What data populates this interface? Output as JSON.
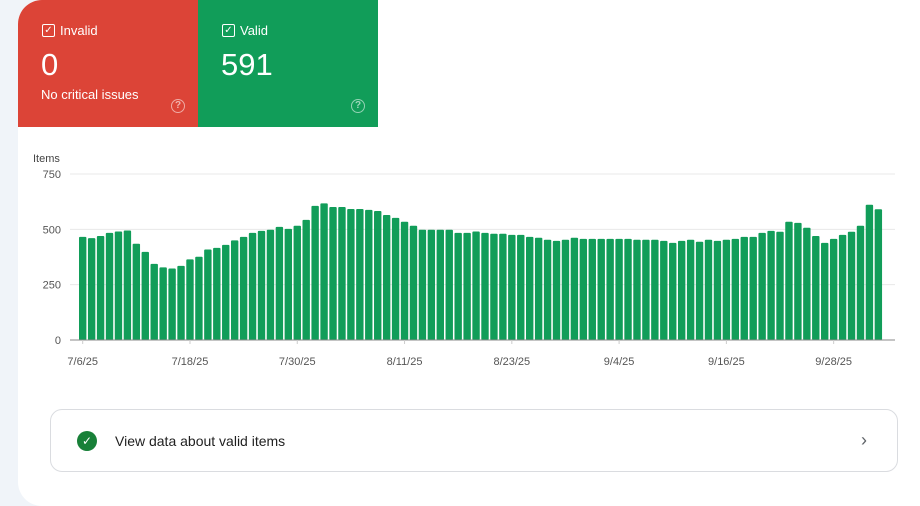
{
  "tiles": [
    {
      "label": "Invalid",
      "count": "0",
      "subtext": "No critical issues",
      "color": "#dc4437",
      "checked": true
    },
    {
      "label": "Valid",
      "count": "591",
      "subtext": "",
      "color": "#119d59",
      "checked": true
    }
  ],
  "chart_data": {
    "type": "bar",
    "ylabel": "Items",
    "ylim": [
      0,
      750
    ],
    "yticks": [
      "0",
      "250",
      "500",
      "750"
    ],
    "grid": true,
    "bar_color": "#119d59",
    "xtick_labels": [
      "7/6/25",
      "7/18/25",
      "7/30/25",
      "8/11/25",
      "8/23/25",
      "9/4/25",
      "9/16/25",
      "9/28/25"
    ],
    "x": [
      "7/6/25",
      "7/7/25",
      "7/8/25",
      "7/9/25",
      "7/10/25",
      "7/11/25",
      "7/12/25",
      "7/13/25",
      "7/14/25",
      "7/15/25",
      "7/16/25",
      "7/17/25",
      "7/18/25",
      "7/19/25",
      "7/20/25",
      "7/21/25",
      "7/22/25",
      "7/23/25",
      "7/24/25",
      "7/25/25",
      "7/26/25",
      "7/27/25",
      "7/28/25",
      "7/29/25",
      "7/30/25",
      "7/31/25",
      "8/1/25",
      "8/2/25",
      "8/3/25",
      "8/4/25",
      "8/5/25",
      "8/6/25",
      "8/7/25",
      "8/8/25",
      "8/9/25",
      "8/10/25",
      "8/11/25",
      "8/12/25",
      "8/13/25",
      "8/14/25",
      "8/15/25",
      "8/16/25",
      "8/17/25",
      "8/18/25",
      "8/19/25",
      "8/20/25",
      "8/21/25",
      "8/22/25",
      "8/23/25",
      "8/24/25",
      "8/25/25",
      "8/26/25",
      "8/27/25",
      "8/28/25",
      "8/29/25",
      "8/30/25",
      "8/31/25",
      "9/1/25",
      "9/2/25",
      "9/3/25",
      "9/4/25",
      "9/5/25",
      "9/6/25",
      "9/7/25",
      "9/8/25",
      "9/9/25",
      "9/10/25",
      "9/11/25",
      "9/12/25",
      "9/13/25",
      "9/14/25",
      "9/15/25",
      "9/16/25",
      "9/17/25",
      "9/18/25",
      "9/19/25",
      "9/20/25",
      "9/21/25",
      "9/22/25",
      "9/23/25",
      "9/24/25",
      "9/25/25",
      "9/26/25",
      "9/27/25",
      "9/28/25",
      "9/29/25",
      "9/30/25",
      "10/1/25",
      "10/2/25",
      "10/3/25"
    ],
    "values": [
      466,
      460,
      470,
      484,
      490,
      495,
      435,
      398,
      344,
      328,
      323,
      335,
      364,
      376,
      409,
      416,
      430,
      450,
      466,
      484,
      493,
      498,
      511,
      502,
      516,
      543,
      606,
      617,
      601,
      601,
      592,
      592,
      588,
      583,
      565,
      552,
      534,
      516,
      498,
      498,
      498,
      498,
      484,
      484,
      490,
      484,
      480,
      480,
      475,
      475,
      466,
      462,
      453,
      448,
      453,
      462,
      457,
      457,
      457,
      457,
      457,
      457,
      453,
      453,
      453,
      448,
      439,
      448,
      453,
      444,
      453,
      448,
      453,
      457,
      466,
      466,
      484,
      493,
      489,
      534,
      529,
      507,
      470,
      439,
      457,
      475,
      489,
      516,
      611,
      591
    ]
  },
  "footer_link": {
    "label": "View data about valid items"
  }
}
